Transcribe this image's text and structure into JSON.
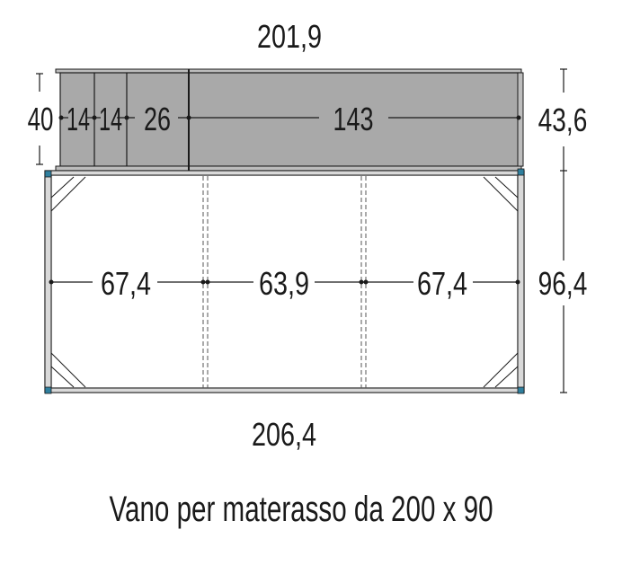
{
  "dimensions": {
    "top_width": "201,9",
    "bottom_width": "206,4",
    "drawer_height": "40",
    "drawer_sections": [
      "14",
      "14",
      "26",
      "143"
    ],
    "drawer_unit_depth": "43,6",
    "bed_sections": [
      "67,4",
      "63,9",
      "67,4"
    ],
    "bed_depth": "96,4"
  },
  "caption": "Vano per materasso da 200 x 90",
  "colors": {
    "drawer_fill": "#a9a9a9",
    "frame": "#d9d9d9",
    "corner": "#2f7f9e",
    "line": "#1a1a1a"
  }
}
